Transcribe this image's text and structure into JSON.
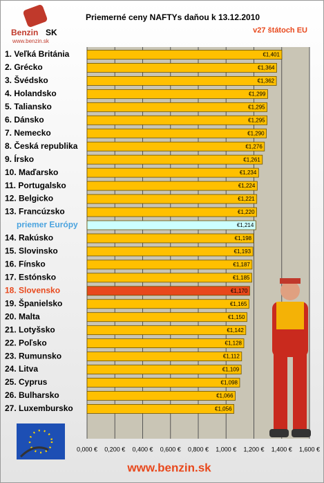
{
  "logo": {
    "name": "Benzin",
    "suffix": "SK",
    "url": "www.benzin.sk"
  },
  "footer": "www.benzin.sk",
  "chart_data": {
    "type": "hbar",
    "title": "Priemerné ceny NAFTYs daňou k 13.12.2010",
    "subtitle": "v27 štátoch EU",
    "categories": [
      "1. Veľká Británia",
      "2. Grécko",
      "3. Švédsko",
      "4. Holandsko",
      "5. Taliansko",
      "6. Dánsko",
      "7. Nemecko",
      "8. Česká republika",
      "9. Írsko",
      "10. Maďarsko",
      "11. Portugalsko",
      "12. Belgicko",
      "13. Francúzsko",
      "priemer Európy",
      "14. Rakúsko",
      "15. Slovinsko",
      "16. Fínsko",
      "17. Estónsko",
      "18. Slovensko",
      "19. Španielsko",
      "20. Malta",
      "21. Lotyšsko",
      "22. Poľsko",
      "23. Rumunsko",
      "24. Litva",
      "25. Cyprus",
      "26. Bulharsko",
      "27. Luxembursko"
    ],
    "values": [
      1.401,
      1.364,
      1.362,
      1.299,
      1.295,
      1.295,
      1.29,
      1.276,
      1.261,
      1.234,
      1.224,
      1.221,
      1.22,
      1.214,
      1.198,
      1.193,
      1.187,
      1.185,
      1.17,
      1.165,
      1.15,
      1.142,
      1.128,
      1.112,
      1.109,
      1.098,
      1.066,
      1.056
    ],
    "value_labels": [
      "€1,401",
      "€1,364",
      "€1,362",
      "€1,299",
      "€1,295",
      "€1,295",
      "€1,290",
      "€1,276",
      "€1,261",
      "€1,234",
      "€1,224",
      "€1,221",
      "€1,220",
      "€1,214",
      "€1,198",
      "€1,193",
      "€1,187",
      "€1,185",
      "€1,170",
      "€1,165",
      "€1,150",
      "€1,142",
      "€1,128",
      "€1,112",
      "€1,109",
      "€1,098",
      "€1,066",
      "€1,056"
    ],
    "colors": [
      "#ffc000",
      "#ffc000",
      "#ffc000",
      "#ffc000",
      "#ffc000",
      "#ffc000",
      "#ffc000",
      "#ffc000",
      "#ffc000",
      "#ffc000",
      "#ffc000",
      "#ffc000",
      "#ffc000",
      "#ccffff",
      "#ffc000",
      "#ffc000",
      "#ffc000",
      "#ffc000",
      "#e8481c",
      "#ffc000",
      "#ffc000",
      "#ffc000",
      "#ffc000",
      "#ffc000",
      "#ffc000",
      "#ffc000",
      "#ffc000",
      "#ffc000"
    ],
    "label_colors": [
      "#000000",
      "#000000",
      "#000000",
      "#000000",
      "#000000",
      "#000000",
      "#000000",
      "#000000",
      "#000000",
      "#000000",
      "#000000",
      "#000000",
      "#000000",
      "#4aa3df",
      "#000000",
      "#000000",
      "#000000",
      "#000000",
      "#e8481c",
      "#000000",
      "#000000",
      "#000000",
      "#000000",
      "#000000",
      "#000000",
      "#000000",
      "#000000",
      "#000000"
    ],
    "xlim": [
      0,
      1.6
    ],
    "xticks": [
      {
        "value": 0,
        "label": "0,000 €"
      },
      {
        "value": 0.2,
        "label": "0,200 €"
      },
      {
        "value": 0.4,
        "label": "0,400 €"
      },
      {
        "value": 0.6,
        "label": "0,600 €"
      },
      {
        "value": 0.8,
        "label": "0,800 €"
      },
      {
        "value": 1.0,
        "label": "1,000 €"
      },
      {
        "value": 1.2,
        "label": "1,200 €"
      },
      {
        "value": 1.4,
        "label": "1,400 €"
      },
      {
        "value": 1.6,
        "label": "1,600 €"
      }
    ],
    "grid": true
  }
}
